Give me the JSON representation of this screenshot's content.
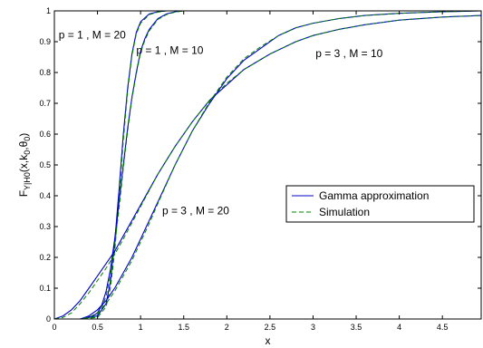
{
  "chart_data": {
    "type": "line",
    "xlabel": "x",
    "ylabel": "F_{Y|H0}(x,k_0,θ_0)",
    "ylabel_parts": {
      "main": "F",
      "sub1": "Y|H0",
      "mid": "(x,k",
      "sub2": "0",
      "comma": ",θ",
      "sub3": "0",
      "end": ")"
    },
    "xlim": [
      0,
      4.95
    ],
    "ylim": [
      0,
      1
    ],
    "xticks": [
      0,
      0.5,
      1,
      1.5,
      2,
      2.5,
      3,
      3.5,
      4,
      4.5
    ],
    "xtick_labels": [
      "0",
      "0.5",
      "1",
      "1.5",
      "2",
      "2.5",
      "3",
      "3.5",
      "4",
      "4.5"
    ],
    "yticks": [
      0,
      0.1,
      0.2,
      0.3,
      0.4,
      0.5,
      0.6,
      0.7,
      0.8,
      0.9,
      1
    ],
    "ytick_labels": [
      "0",
      "0.1",
      "0.2",
      "0.3",
      "0.4",
      "0.5",
      "0.6",
      "0.7",
      "0.8",
      "0.9",
      "1"
    ],
    "grid": false,
    "legend": {
      "placement": "center-right",
      "entries": [
        {
          "label": "Gamma approximation",
          "style": "solid",
          "color": "#0000cc"
        },
        {
          "label": "Simulation",
          "style": "dashed",
          "color": "#008000"
        }
      ]
    },
    "annotations": [
      {
        "text": "p = 1 , M = 20",
        "x": 0.05,
        "y": 0.91
      },
      {
        "text": "p = 1 , M = 10",
        "x": 0.95,
        "y": 0.86
      },
      {
        "text": "p = 3 , M = 10",
        "x": 3.03,
        "y": 0.85
      },
      {
        "text": "p = 3 , M = 20",
        "x": 1.25,
        "y": 0.34
      }
    ],
    "series": [
      {
        "curve": "p=1,M=20",
        "kind": "gamma",
        "x": [
          0,
          0.3,
          0.5,
          0.6,
          0.65,
          0.7,
          0.75,
          0.8,
          0.85,
          0.9,
          0.95,
          1.0,
          1.1,
          1.2,
          1.3,
          1.5,
          2.0,
          4.95
        ],
        "y": [
          0,
          0.0,
          0.01,
          0.05,
          0.12,
          0.25,
          0.42,
          0.6,
          0.75,
          0.86,
          0.93,
          0.965,
          0.99,
          0.997,
          1.0,
          1.0,
          1.0,
          1.0
        ]
      },
      {
        "curve": "p=1,M=20",
        "kind": "simulation",
        "x": [
          0,
          0.3,
          0.5,
          0.6,
          0.65,
          0.7,
          0.75,
          0.8,
          0.85,
          0.9,
          0.95,
          1.0,
          1.1,
          1.2,
          1.3,
          1.5,
          2.0,
          4.95
        ],
        "y": [
          0,
          0.0,
          0.005,
          0.04,
          0.1,
          0.22,
          0.39,
          0.58,
          0.74,
          0.855,
          0.925,
          0.96,
          0.988,
          0.996,
          1.0,
          1.0,
          1.0,
          1.0
        ]
      },
      {
        "curve": "p=1,M=10",
        "kind": "gamma",
        "x": [
          0,
          0.3,
          0.45,
          0.5,
          0.55,
          0.6,
          0.65,
          0.7,
          0.75,
          0.8,
          0.85,
          0.9,
          0.95,
          1.0,
          1.05,
          1.1,
          1.2,
          1.3,
          1.4,
          1.5,
          2.0,
          4.95
        ],
        "y": [
          0,
          0.0,
          0.01,
          0.02,
          0.045,
          0.09,
          0.16,
          0.26,
          0.38,
          0.5,
          0.62,
          0.72,
          0.8,
          0.87,
          0.91,
          0.94,
          0.975,
          0.99,
          0.997,
          1.0,
          1.0,
          1.0
        ]
      },
      {
        "curve": "p=1,M=10",
        "kind": "simulation",
        "x": [
          0,
          0.3,
          0.45,
          0.5,
          0.55,
          0.6,
          0.65,
          0.7,
          0.75,
          0.8,
          0.85,
          0.9,
          0.95,
          1.0,
          1.05,
          1.1,
          1.2,
          1.3,
          1.4,
          1.5,
          2.0,
          4.95
        ],
        "y": [
          0,
          0.0,
          0.005,
          0.015,
          0.035,
          0.075,
          0.14,
          0.24,
          0.36,
          0.49,
          0.61,
          0.715,
          0.795,
          0.865,
          0.905,
          0.935,
          0.972,
          0.988,
          0.996,
          1.0,
          1.0,
          1.0
        ]
      },
      {
        "curve": "p=3,M=10",
        "kind": "gamma",
        "x": [
          0,
          0.1,
          0.2,
          0.3,
          0.4,
          0.5,
          0.6,
          0.7,
          0.8,
          1.0,
          1.2,
          1.4,
          1.6,
          1.8,
          2.0,
          2.2,
          2.5,
          2.8,
          3.0,
          3.3,
          3.6,
          4.0,
          4.5,
          4.95
        ],
        "y": [
          0,
          0.01,
          0.03,
          0.06,
          0.1,
          0.14,
          0.18,
          0.22,
          0.27,
          0.37,
          0.47,
          0.56,
          0.64,
          0.71,
          0.76,
          0.81,
          0.86,
          0.9,
          0.92,
          0.94,
          0.955,
          0.97,
          0.98,
          0.985
        ]
      },
      {
        "curve": "p=3,M=10",
        "kind": "simulation",
        "x": [
          0,
          0.1,
          0.2,
          0.3,
          0.4,
          0.5,
          0.6,
          0.7,
          0.8,
          1.0,
          1.2,
          1.4,
          1.6,
          1.8,
          2.0,
          2.2,
          2.5,
          2.8,
          3.0,
          3.3,
          3.6,
          4.0,
          4.5,
          4.95
        ],
        "y": [
          0,
          0.005,
          0.02,
          0.05,
          0.085,
          0.125,
          0.165,
          0.21,
          0.26,
          0.365,
          0.47,
          0.56,
          0.64,
          0.71,
          0.765,
          0.81,
          0.86,
          0.9,
          0.92,
          0.94,
          0.955,
          0.97,
          0.98,
          0.985
        ]
      },
      {
        "curve": "p=3,M=20",
        "kind": "gamma",
        "x": [
          0,
          0.3,
          0.4,
          0.5,
          0.6,
          0.7,
          0.8,
          0.9,
          1.0,
          1.1,
          1.2,
          1.4,
          1.6,
          1.8,
          2.0,
          2.2,
          2.4,
          2.6,
          2.8,
          3.0,
          3.3,
          3.6,
          4.0,
          4.5,
          4.95
        ],
        "y": [
          0,
          0.0,
          0.01,
          0.03,
          0.06,
          0.1,
          0.15,
          0.2,
          0.26,
          0.32,
          0.38,
          0.5,
          0.61,
          0.7,
          0.78,
          0.84,
          0.88,
          0.92,
          0.945,
          0.96,
          0.975,
          0.985,
          0.992,
          0.997,
          1.0
        ]
      },
      {
        "curve": "p=3,M=20",
        "kind": "simulation",
        "x": [
          0,
          0.3,
          0.4,
          0.5,
          0.6,
          0.7,
          0.8,
          0.9,
          1.0,
          1.1,
          1.2,
          1.4,
          1.6,
          1.8,
          2.0,
          2.2,
          2.4,
          2.6,
          2.8,
          3.0,
          3.3,
          3.6,
          4.0,
          4.5,
          4.95
        ],
        "y": [
          0,
          0.0,
          0.005,
          0.02,
          0.05,
          0.09,
          0.14,
          0.19,
          0.25,
          0.31,
          0.375,
          0.5,
          0.61,
          0.705,
          0.785,
          0.845,
          0.885,
          0.92,
          0.945,
          0.96,
          0.975,
          0.985,
          0.992,
          0.997,
          1.0
        ]
      }
    ]
  }
}
